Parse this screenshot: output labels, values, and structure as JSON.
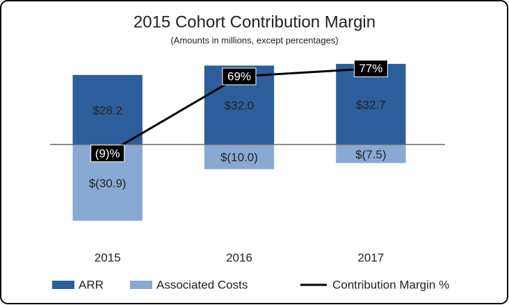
{
  "chart_data": {
    "type": "bar",
    "title": "2015 Cohort Contribution Margin",
    "subtitle": "(Amounts in millions, except percentages)",
    "categories": [
      "2015",
      "2016",
      "2017"
    ],
    "series": [
      {
        "name": "ARR",
        "color": "#2d5e9c",
        "values": [
          28.2,
          32.0,
          32.7
        ],
        "value_labels": [
          "$28.2",
          "$32.0",
          "$32.7"
        ]
      },
      {
        "name": "Associated Costs",
        "color": "#88a9d2",
        "values": [
          -30.9,
          -10.0,
          -7.5
        ],
        "value_labels": [
          "$(30.9)",
          "$(10.0)",
          "$(7.5)"
        ]
      },
      {
        "name": "Contribution Margin %",
        "color": "#000000",
        "type": "line",
        "axis": "y2",
        "values": [
          -9,
          69,
          77
        ],
        "value_labels": [
          "(9)%",
          "69%",
          "77%"
        ]
      }
    ],
    "ylim": [
      -40,
      40
    ],
    "y2lim": [
      -100,
      100
    ]
  }
}
